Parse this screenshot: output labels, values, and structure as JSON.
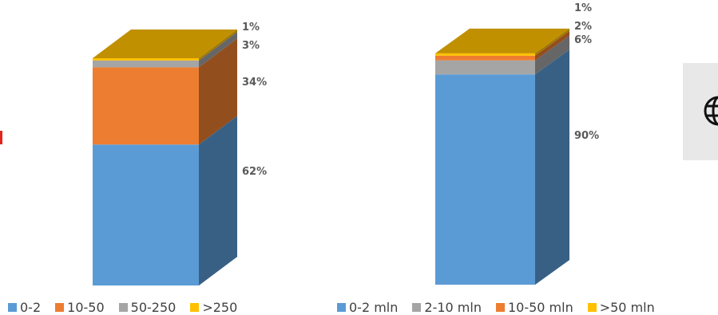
{
  "chart_data": [
    {
      "type": "bar",
      "stacked": true,
      "three_d": true,
      "categories": [
        ""
      ],
      "series": [
        {
          "name": "0-2",
          "values": [
            62
          ],
          "label": "62%",
          "color": "#5b9bd5"
        },
        {
          "name": "10-50",
          "values": [
            34
          ],
          "label": "34%",
          "color": "#ed7d31"
        },
        {
          "name": "50-250",
          "values": [
            3
          ],
          "label": "3%",
          "color": "#a5a5a5"
        },
        {
          "name": ">250",
          "values": [
            1
          ],
          "label": "1%",
          "color": "#ffc000"
        }
      ],
      "legend": [
        "0-2",
        "10-50",
        "50-250",
        ">250"
      ],
      "legend_position": "bottom",
      "ylim": [
        0,
        100
      ],
      "grid": false
    },
    {
      "type": "bar",
      "stacked": true,
      "three_d": true,
      "categories": [
        ""
      ],
      "series": [
        {
          "name": "0-2 mln",
          "values": [
            90
          ],
          "label": "90%",
          "color": "#5b9bd5"
        },
        {
          "name": "2-10 mln",
          "values": [
            6
          ],
          "label": "6%",
          "color": "#a5a5a5"
        },
        {
          "name": "10-50 mln",
          "values": [
            2
          ],
          "label": "2%",
          "color": "#ed7d31"
        },
        {
          "name": ">50 mln",
          "values": [
            1
          ],
          "label": "1%",
          "color": "#ffc000"
        }
      ],
      "legend": [
        "0-2 mln",
        "2-10 mln",
        "10-50 mln",
        ">50 mln"
      ],
      "legend_position": "bottom",
      "ylim": [
        0,
        100
      ],
      "grid": false
    }
  ],
  "top_color": "#c09000",
  "icon": "globe-icon"
}
